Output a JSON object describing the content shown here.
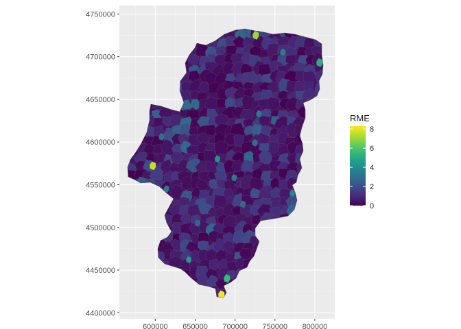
{
  "chart_data": {
    "type": "choropleth",
    "title": "",
    "xlabel": "",
    "ylabel": "",
    "xlim": [
      555000,
      825000
    ],
    "ylim": [
      4393000,
      4760000
    ],
    "x_ticks": [
      {
        "value": 600000,
        "label": "600000"
      },
      {
        "value": 650000,
        "label": "650000"
      },
      {
        "value": 700000,
        "label": "700000"
      },
      {
        "value": 750000,
        "label": "750000"
      },
      {
        "value": 800000,
        "label": "800000"
      }
    ],
    "y_ticks": [
      {
        "value": 4400000,
        "label": "4400000"
      },
      {
        "value": 4450000,
        "label": "4450000"
      },
      {
        "value": 4500000,
        "label": "4500000"
      },
      {
        "value": 4550000,
        "label": "4550000"
      },
      {
        "value": 4600000,
        "label": "4600000"
      },
      {
        "value": 4650000,
        "label": "4650000"
      },
      {
        "value": 4700000,
        "label": "4700000"
      },
      {
        "value": 4750000,
        "label": "4750000"
      }
    ],
    "grid": true,
    "legend": {
      "title": "RME",
      "position": "right",
      "min": 0,
      "max": 8.3,
      "ticks": [
        {
          "value": 0,
          "label": "0"
        },
        {
          "value": 2,
          "label": "2"
        },
        {
          "value": 4,
          "label": "4"
        },
        {
          "value": 6,
          "label": "6"
        },
        {
          "value": 8,
          "label": "8"
        }
      ],
      "palette": [
        "#440154",
        "#482878",
        "#3E4A89",
        "#31688E",
        "#26828E",
        "#1F9E89",
        "#35B779",
        "#6DCD59",
        "#B4DE2C",
        "#FDE725"
      ]
    },
    "highlights": [
      {
        "x": 683000,
        "y": 4421000,
        "value": 8.2
      },
      {
        "x": 597000,
        "y": 4572000,
        "value": 7.6
      },
      {
        "x": 726000,
        "y": 4725000,
        "value": 7.0
      },
      {
        "x": 690000,
        "y": 4440000,
        "value": 5.6
      },
      {
        "x": 806000,
        "y": 4693000,
        "value": 5.2
      },
      {
        "x": 678000,
        "y": 4580000,
        "value": 4.2
      },
      {
        "x": 730000,
        "y": 4633000,
        "value": 3.6
      },
      {
        "x": 614000,
        "y": 4545000,
        "value": 3.4
      },
      {
        "x": 772000,
        "y": 4540000,
        "value": 3.8
      },
      {
        "x": 642000,
        "y": 4462000,
        "value": 4.4
      },
      {
        "x": 699000,
        "y": 4558000,
        "value": 3.4
      },
      {
        "x": 725000,
        "y": 4599000,
        "value": 3.0
      },
      {
        "x": 608000,
        "y": 4606000,
        "value": 3.2
      },
      {
        "x": 760000,
        "y": 4705000,
        "value": 3.6
      },
      {
        "x": 710000,
        "y": 4527000,
        "value": 2.8
      },
      {
        "x": 653000,
        "y": 4505000,
        "value": 2.8
      }
    ]
  }
}
